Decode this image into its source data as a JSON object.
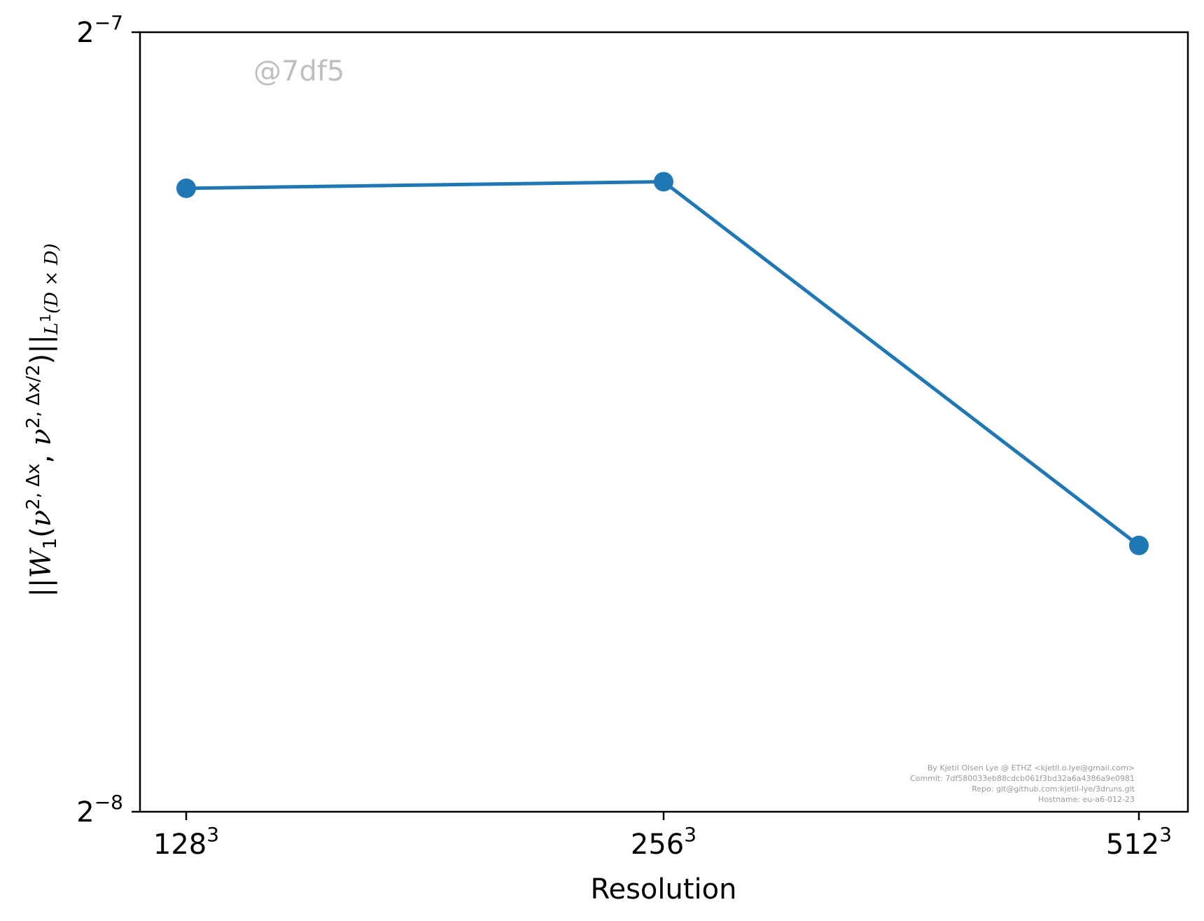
{
  "chart_data": {
    "type": "line",
    "x_categories": [
      "128",
      "256",
      "512"
    ],
    "x_exponent": "3",
    "series": [
      {
        "values": [
          0.0068,
          0.00684,
          0.00495
        ],
        "color": "#1f77b4",
        "marker": "circle"
      }
    ],
    "ylabel_parts": {
      "norm_open": "||",
      "W": "W",
      "sub1": "1",
      "paren_open": "(",
      "nu": "ν",
      "sup_a": "2, Δx",
      "comma": ", ",
      "sup_b": "2, Δx/2",
      "paren_close": ")",
      "norm_close": "||",
      "sub_space": "L",
      "sub_space_sup": "1",
      "sub_space_rest": "(D × D)"
    },
    "xlabel": "Resolution",
    "y_scale": "log2",
    "y_ticks": [
      {
        "base": "2",
        "exp": "−8",
        "value": 0.00390625
      },
      {
        "base": "2",
        "exp": "−7",
        "value": 0.0078125
      }
    ],
    "ylim": [
      0.00390625,
      0.0078125
    ],
    "grid": false,
    "legend": "none"
  },
  "watermark": "@7df5",
  "credits": [
    "By Kjetil Olsen Lye @ ETHZ <kjetil.o.lye@gmail.com>",
    "Commit: 7df580033eb88cdcb061f3bd32a6a4386a9e0981",
    "Repo: git@github.com:kjetil-lye/3druns.git",
    "Hostname: eu-a6-012-23"
  ]
}
